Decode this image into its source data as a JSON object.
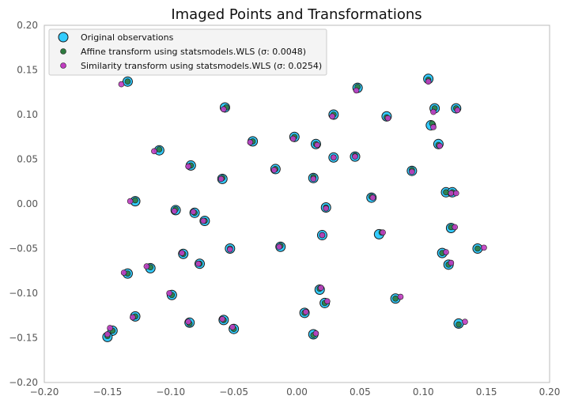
{
  "chart_data": {
    "type": "scatter",
    "title": "Imaged Points and Transformations",
    "xlabel": "",
    "ylabel": "",
    "xlim": [
      -0.2,
      0.2
    ],
    "ylim": [
      -0.2,
      0.2
    ],
    "xticks": [
      "−0.20",
      "−0.15",
      "−0.10",
      "−0.05",
      "0.00",
      "0.05",
      "0.10",
      "0.15",
      "0.20"
    ],
    "yticks": [
      "0.20",
      "0.15",
      "0.10",
      "0.05",
      "0.00",
      "−0.05",
      "−0.10",
      "−0.15",
      "−0.20"
    ],
    "xtick_values": [
      -0.2,
      -0.15,
      -0.1,
      -0.05,
      0.0,
      0.05,
      0.1,
      0.15,
      0.2
    ],
    "ytick_values": [
      0.2,
      0.15,
      0.1,
      0.05,
      0.0,
      -0.05,
      -0.1,
      -0.15,
      -0.2
    ],
    "grid": false,
    "legend_position": "top-left",
    "legend": [
      {
        "label": "Original observations",
        "color": "#33ccff",
        "marker": "large-circle"
      },
      {
        "label": "Affine transform using statsmodels.WLS (σ: 0.0048)",
        "color": "#2d7a3e",
        "marker": "small-circle"
      },
      {
        "label": "Similarity transform using statsmodels.WLS (σ: 0.0254)",
        "color": "#c03cc0",
        "marker": "small-circle"
      }
    ],
    "series": [
      {
        "name": "Original observations",
        "color": "#33ccff",
        "points": [
          [
            -0.134,
            0.137
          ],
          [
            -0.057,
            0.108
          ],
          [
            0.048,
            0.13
          ],
          [
            0.104,
            0.14
          ],
          [
            0.109,
            0.107
          ],
          [
            0.126,
            0.107
          ],
          [
            0.029,
            0.1
          ],
          [
            0.071,
            0.098
          ],
          [
            -0.035,
            0.07
          ],
          [
            -0.002,
            0.075
          ],
          [
            0.015,
            0.067
          ],
          [
            0.112,
            0.067
          ],
          [
            -0.109,
            0.06
          ],
          [
            0.029,
            0.052
          ],
          [
            0.046,
            0.053
          ],
          [
            -0.084,
            0.043
          ],
          [
            -0.017,
            0.039
          ],
          [
            0.091,
            0.037
          ],
          [
            -0.059,
            0.028
          ],
          [
            0.013,
            0.029
          ],
          [
            0.118,
            0.013
          ],
          [
            0.123,
            0.013
          ],
          [
            -0.128,
            0.003
          ],
          [
            0.059,
            0.007
          ],
          [
            -0.096,
            -0.007
          ],
          [
            -0.081,
            -0.01
          ],
          [
            0.023,
            -0.004
          ],
          [
            -0.073,
            -0.019
          ],
          [
            0.122,
            -0.027
          ],
          [
            0.02,
            -0.035
          ],
          [
            -0.053,
            -0.05
          ],
          [
            -0.013,
            -0.048
          ],
          [
            0.143,
            -0.05
          ],
          [
            -0.09,
            -0.056
          ],
          [
            0.115,
            -0.055
          ],
          [
            -0.077,
            -0.067
          ],
          [
            0.12,
            -0.068
          ],
          [
            -0.116,
            -0.072
          ],
          [
            -0.134,
            -0.078
          ],
          [
            0.018,
            -0.096
          ],
          [
            -0.099,
            -0.102
          ],
          [
            0.078,
            -0.106
          ],
          [
            0.022,
            -0.111
          ],
          [
            0.006,
            -0.122
          ],
          [
            -0.128,
            -0.126
          ],
          [
            -0.058,
            -0.13
          ],
          [
            -0.085,
            -0.133
          ],
          [
            0.128,
            -0.134
          ],
          [
            -0.05,
            -0.14
          ],
          [
            -0.146,
            -0.142
          ],
          [
            0.013,
            -0.146
          ],
          [
            -0.15,
            -0.149
          ],
          [
            0.106,
            0.088
          ],
          [
            0.065,
            -0.034
          ]
        ]
      },
      {
        "name": "Affine transform using statsmodels.WLS (σ: 0.0048)",
        "color": "#2d7a3e",
        "points": [
          [
            -0.134,
            0.137
          ],
          [
            -0.056,
            0.108
          ],
          [
            0.048,
            0.131
          ],
          [
            0.104,
            0.139
          ],
          [
            0.109,
            0.107
          ],
          [
            0.126,
            0.107
          ],
          [
            0.029,
            0.1
          ],
          [
            0.071,
            0.097
          ],
          [
            -0.035,
            0.07
          ],
          [
            -0.002,
            0.075
          ],
          [
            0.015,
            0.067
          ],
          [
            0.112,
            0.066
          ],
          [
            -0.109,
            0.061
          ],
          [
            0.029,
            0.052
          ],
          [
            0.046,
            0.054
          ],
          [
            -0.084,
            0.043
          ],
          [
            -0.017,
            0.039
          ],
          [
            0.091,
            0.038
          ],
          [
            -0.059,
            0.029
          ],
          [
            0.013,
            0.03
          ],
          [
            0.118,
            0.013
          ],
          [
            0.123,
            0.013
          ],
          [
            -0.128,
            0.004
          ],
          [
            0.059,
            0.008
          ],
          [
            -0.096,
            -0.006
          ],
          [
            -0.081,
            -0.01
          ],
          [
            0.023,
            -0.004
          ],
          [
            -0.073,
            -0.019
          ],
          [
            0.122,
            -0.026
          ],
          [
            0.02,
            -0.035
          ],
          [
            -0.053,
            -0.05
          ],
          [
            -0.013,
            -0.047
          ],
          [
            0.143,
            -0.05
          ],
          [
            -0.09,
            -0.056
          ],
          [
            0.115,
            -0.055
          ],
          [
            -0.077,
            -0.067
          ],
          [
            0.12,
            -0.068
          ],
          [
            -0.116,
            -0.071
          ],
          [
            -0.134,
            -0.078
          ],
          [
            0.018,
            -0.095
          ],
          [
            -0.099,
            -0.102
          ],
          [
            0.078,
            -0.106
          ],
          [
            0.022,
            -0.111
          ],
          [
            0.006,
            -0.122
          ],
          [
            -0.128,
            -0.126
          ],
          [
            -0.058,
            -0.13
          ],
          [
            -0.085,
            -0.134
          ],
          [
            0.128,
            -0.135
          ],
          [
            -0.05,
            -0.14
          ],
          [
            -0.146,
            -0.142
          ],
          [
            0.013,
            -0.147
          ],
          [
            -0.15,
            -0.148
          ],
          [
            0.107,
            0.09
          ],
          [
            0.067,
            -0.032
          ]
        ]
      },
      {
        "name": "Similarity transform using statsmodels.WLS (σ: 0.0254)",
        "color": "#c03cc0",
        "points": [
          [
            -0.139,
            0.134
          ],
          [
            -0.058,
            0.106
          ],
          [
            0.047,
            0.127
          ],
          [
            0.104,
            0.137
          ],
          [
            0.108,
            0.103
          ],
          [
            0.127,
            0.105
          ],
          [
            0.028,
            0.098
          ],
          [
            0.072,
            0.096
          ],
          [
            -0.037,
            0.069
          ],
          [
            -0.003,
            0.073
          ],
          [
            0.016,
            0.066
          ],
          [
            0.113,
            0.065
          ],
          [
            -0.113,
            0.059
          ],
          [
            0.029,
            0.052
          ],
          [
            0.046,
            0.053
          ],
          [
            -0.086,
            0.042
          ],
          [
            -0.018,
            0.038
          ],
          [
            0.091,
            0.036
          ],
          [
            -0.06,
            0.028
          ],
          [
            0.013,
            0.028
          ],
          [
            0.122,
            0.012
          ],
          [
            0.126,
            0.012
          ],
          [
            -0.132,
            0.003
          ],
          [
            0.06,
            0.007
          ],
          [
            -0.097,
            -0.008
          ],
          [
            -0.082,
            -0.009
          ],
          [
            0.023,
            -0.005
          ],
          [
            -0.074,
            -0.019
          ],
          [
            0.125,
            -0.026
          ],
          [
            0.02,
            -0.035
          ],
          [
            -0.053,
            -0.051
          ],
          [
            -0.014,
            -0.048
          ],
          [
            0.148,
            -0.049
          ],
          [
            -0.091,
            -0.055
          ],
          [
            0.118,
            -0.054
          ],
          [
            -0.078,
            -0.067
          ],
          [
            0.122,
            -0.066
          ],
          [
            -0.119,
            -0.07
          ],
          [
            -0.137,
            -0.077
          ],
          [
            0.019,
            -0.094
          ],
          [
            -0.101,
            -0.1
          ],
          [
            0.082,
            -0.104
          ],
          [
            0.024,
            -0.109
          ],
          [
            0.007,
            -0.121
          ],
          [
            -0.13,
            -0.127
          ],
          [
            -0.059,
            -0.129
          ],
          [
            -0.086,
            -0.132
          ],
          [
            0.133,
            -0.132
          ],
          [
            -0.051,
            -0.138
          ],
          [
            -0.148,
            -0.139
          ],
          [
            0.015,
            -0.145
          ],
          [
            -0.15,
            -0.146
          ],
          [
            0.108,
            0.086
          ],
          [
            0.068,
            -0.032
          ]
        ]
      }
    ]
  }
}
